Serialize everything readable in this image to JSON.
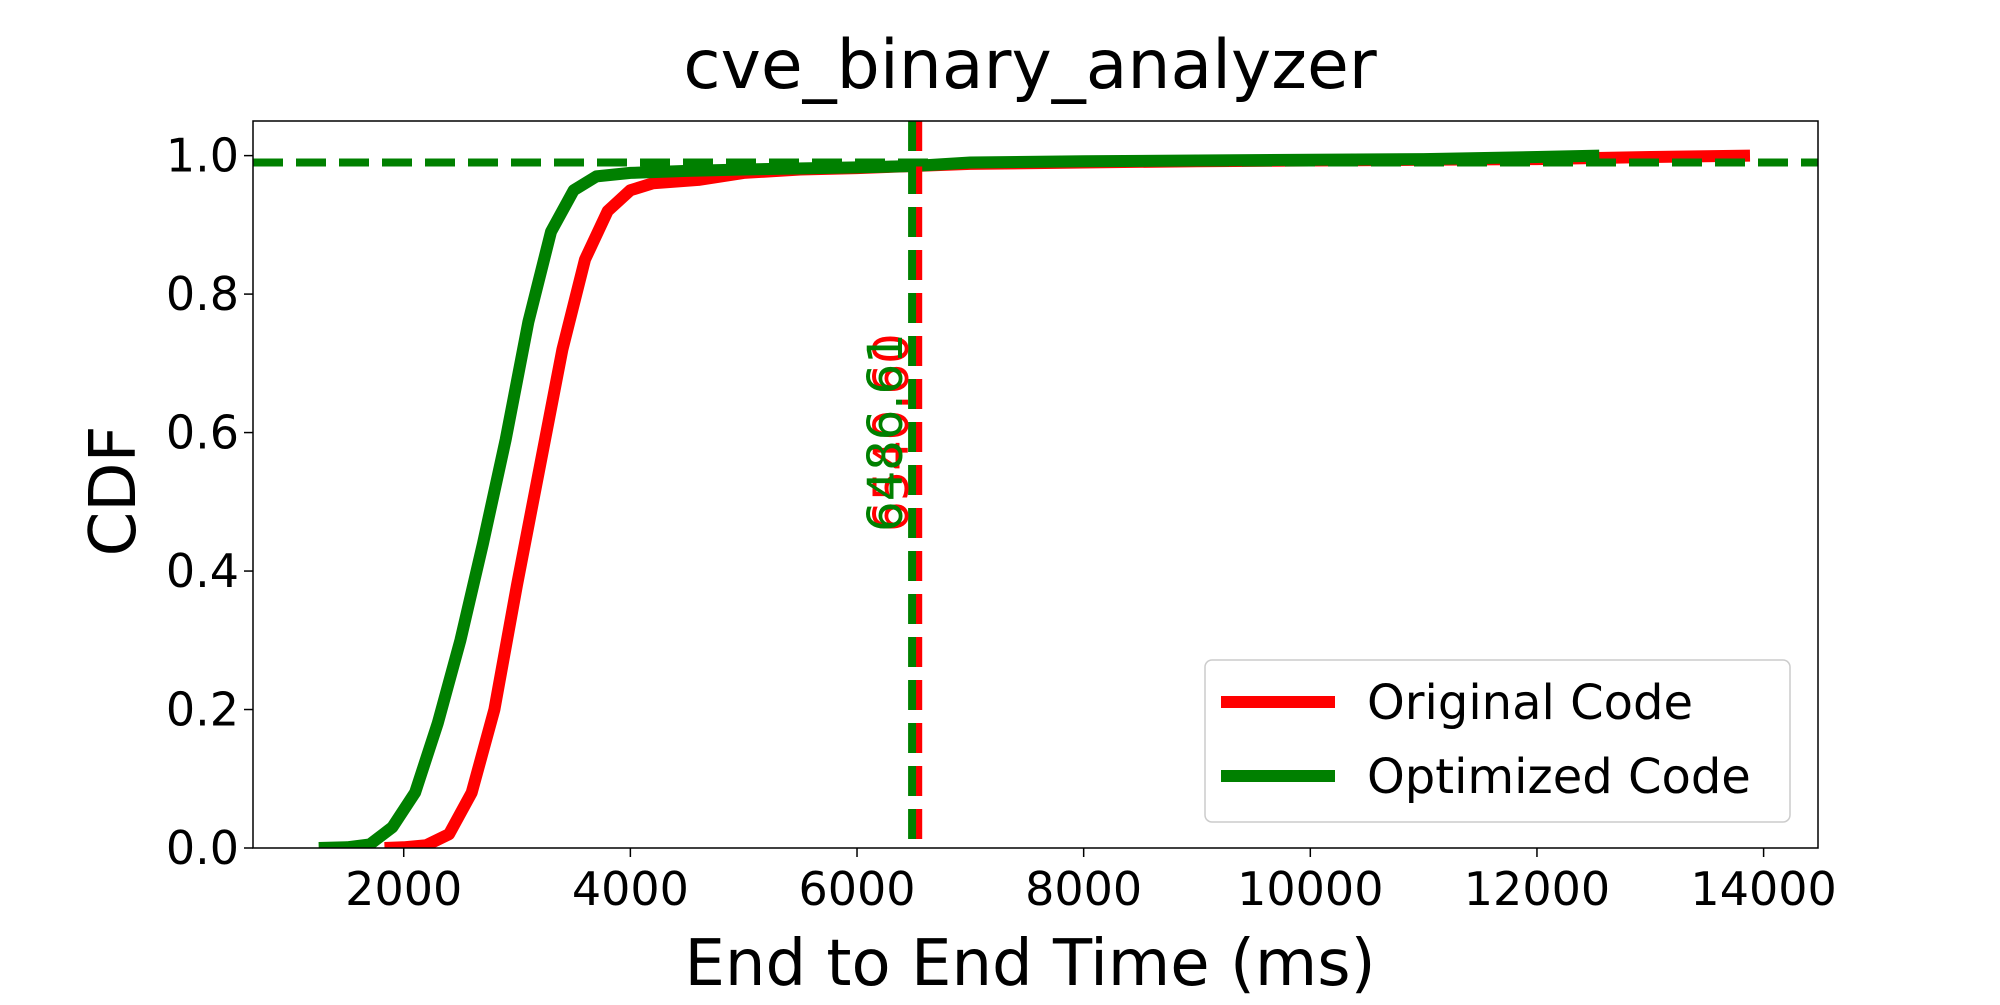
{
  "chart_data": {
    "type": "line",
    "title": "cve_binary_analyzer",
    "xlabel": "End to End Time (ms)",
    "ylabel": "CDF",
    "xlim": [
      670,
      14480
    ],
    "ylim": [
      0.0,
      1.05
    ],
    "x_ticks": [
      2000,
      4000,
      6000,
      8000,
      10000,
      12000,
      14000
    ],
    "x_tick_labels": [
      "2000",
      "4000",
      "6000",
      "8000",
      "10000",
      "12000",
      "14000"
    ],
    "y_ticks": [
      0.0,
      0.2,
      0.4,
      0.6,
      0.8,
      1.0
    ],
    "y_tick_labels": [
      "0.0",
      "0.2",
      "0.4",
      "0.6",
      "0.8",
      "1.0"
    ],
    "grid": false,
    "legend_position": "bottom-right",
    "series": [
      {
        "name": "Original Code",
        "color": "#ff0000",
        "x": [
          1830,
          2000,
          2200,
          2400,
          2600,
          2800,
          3000,
          3200,
          3400,
          3600,
          3800,
          4000,
          4200,
          4600,
          5000,
          5500,
          6000,
          6500,
          7000,
          8000,
          9000,
          10000,
          11000,
          12000,
          13000,
          13880
        ],
        "y": [
          0.0,
          0.001,
          0.004,
          0.02,
          0.08,
          0.2,
          0.38,
          0.55,
          0.72,
          0.85,
          0.92,
          0.95,
          0.96,
          0.965,
          0.975,
          0.98,
          0.982,
          0.985,
          0.988,
          0.99,
          0.992,
          0.993,
          0.994,
          0.995,
          0.998,
          1.0
        ]
      },
      {
        "name": "Optimized Code",
        "color": "#008000",
        "x": [
          1250,
          1500,
          1700,
          1900,
          2100,
          2300,
          2500,
          2700,
          2900,
          3100,
          3300,
          3500,
          3700,
          4000,
          4500,
          5000,
          6000,
          6500,
          7000,
          8000,
          9000,
          10000,
          11000,
          12000,
          12550
        ],
        "y": [
          0.0,
          0.001,
          0.005,
          0.03,
          0.08,
          0.18,
          0.3,
          0.44,
          0.59,
          0.76,
          0.89,
          0.95,
          0.97,
          0.975,
          0.978,
          0.98,
          0.983,
          0.985,
          0.99,
          0.992,
          0.993,
          0.994,
          0.995,
          0.998,
          1.0
        ]
      }
    ],
    "reference_lines": [
      {
        "orientation": "vertical",
        "x": 6540,
        "color": "#ff0000",
        "style": "dashed"
      },
      {
        "orientation": "vertical",
        "x": 6486,
        "color": "#008000",
        "style": "dashed"
      },
      {
        "orientation": "horizontal",
        "y": 0.99,
        "color": "#ff0000",
        "style": "dashed"
      },
      {
        "orientation": "horizontal",
        "y": 0.99,
        "color": "#008000",
        "style": "dashed"
      }
    ],
    "annotations": [
      {
        "text": "6540.60",
        "x": 6540,
        "y": 0.6,
        "color": "#ff0000",
        "rotation": 90
      },
      {
        "text": "6486.61",
        "x": 6486,
        "y": 0.6,
        "color": "#008000",
        "rotation": 90
      }
    ]
  }
}
